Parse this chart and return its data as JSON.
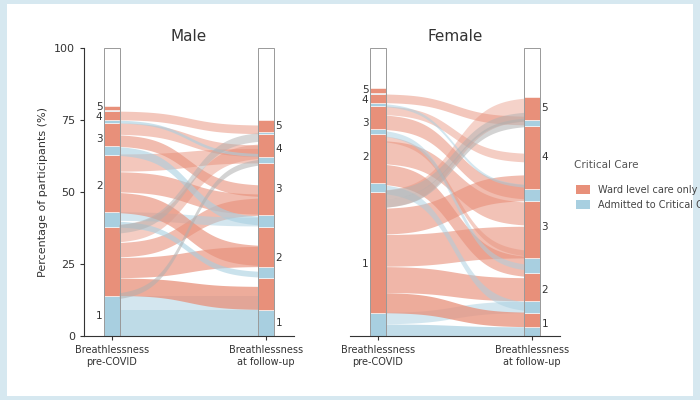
{
  "background_color": "#d6e8f0",
  "panel_bg": "#ffffff",
  "ward_color": "#e8907a",
  "critical_color": "#a8cfe0",
  "gray_color": "#b0b0b0",
  "title_male": "Male",
  "title_female": "Female",
  "ylabel": "Percentage of participants (%)",
  "xlabel_pre": "Breathlessness\npre-COVID",
  "xlabel_post": "Breathlessness\nat follow-up",
  "legend_title": "Critical Care",
  "legend_ward": "Ward level care only",
  "legend_critical": "Admitted to Critical Care",
  "male_pre_segs": [
    [
      0,
      14,
      "critical"
    ],
    [
      14,
      24,
      "ward"
    ],
    [
      38,
      5,
      "critical"
    ],
    [
      43,
      20,
      "ward"
    ],
    [
      63,
      3,
      "critical"
    ],
    [
      66,
      8,
      "ward"
    ],
    [
      74,
      1,
      "critical"
    ],
    [
      75,
      3,
      "ward"
    ],
    [
      78,
      0.5,
      "critical"
    ],
    [
      78.5,
      1.5,
      "ward"
    ]
  ],
  "male_pre_labels": [
    [
      7,
      "1"
    ],
    [
      52,
      "2"
    ],
    [
      68.5,
      "3"
    ],
    [
      76,
      "4"
    ],
    [
      79.5,
      "5"
    ]
  ],
  "male_post_segs": [
    [
      0,
      9,
      "critical"
    ],
    [
      9,
      11,
      "ward"
    ],
    [
      20,
      4,
      "critical"
    ],
    [
      24,
      14,
      "ward"
    ],
    [
      38,
      4,
      "critical"
    ],
    [
      42,
      18,
      "ward"
    ],
    [
      60,
      2,
      "critical"
    ],
    [
      62,
      8,
      "ward"
    ],
    [
      70,
      1,
      "critical"
    ],
    [
      71,
      4,
      "ward"
    ]
  ],
  "male_post_labels": [
    [
      4.5,
      "1"
    ],
    [
      27,
      "2"
    ],
    [
      51,
      "3"
    ],
    [
      65,
      "4"
    ],
    [
      73,
      "5"
    ]
  ],
  "male_transitions": [
    [
      0,
      9,
      0,
      9,
      "critical",
      0.75
    ],
    [
      9,
      14,
      9,
      14,
      "critical",
      0.5
    ],
    [
      14,
      20,
      9,
      17,
      "ward",
      0.75
    ],
    [
      20,
      27,
      24,
      31,
      "ward",
      0.65
    ],
    [
      27,
      32,
      42,
      48,
      "ward",
      0.6
    ],
    [
      32,
      38,
      62,
      67,
      "ward",
      0.45
    ],
    [
      38,
      40,
      20,
      22,
      "critical",
      0.6
    ],
    [
      40,
      43,
      38,
      41,
      "critical",
      0.5
    ],
    [
      43,
      50,
      24,
      31,
      "ward",
      0.65
    ],
    [
      50,
      57,
      42,
      49,
      "ward",
      0.6
    ],
    [
      57,
      63,
      60,
      65,
      "ward",
      0.5
    ],
    [
      63,
      66,
      38,
      41,
      "critical",
      0.6
    ],
    [
      66,
      70,
      48,
      52,
      "ward",
      0.6
    ],
    [
      70,
      74,
      62,
      66,
      "ward",
      0.5
    ],
    [
      74,
      75,
      62,
      63,
      "critical",
      0.6
    ],
    [
      75,
      78,
      70,
      73,
      "ward",
      0.5
    ],
    [
      12,
      14,
      60,
      62,
      "gray",
      0.55
    ],
    [
      35,
      38,
      68,
      71,
      "gray",
      0.5
    ]
  ],
  "female_pre_segs": [
    [
      0,
      8,
      "critical"
    ],
    [
      8,
      42,
      "ward"
    ],
    [
      50,
      3,
      "critical"
    ],
    [
      53,
      17,
      "ward"
    ],
    [
      70,
      2,
      "critical"
    ],
    [
      72,
      8,
      "ward"
    ],
    [
      80,
      1,
      "critical"
    ],
    [
      81,
      3,
      "ward"
    ],
    [
      84,
      0.5,
      "critical"
    ],
    [
      84.5,
      1.5,
      "ward"
    ]
  ],
  "female_pre_labels": [
    [
      25,
      "1"
    ],
    [
      62,
      "2"
    ],
    [
      74,
      "3"
    ],
    [
      82,
      "4"
    ],
    [
      85.5,
      "5"
    ]
  ],
  "female_post_segs": [
    [
      0,
      3,
      "critical"
    ],
    [
      3,
      5,
      "ward"
    ],
    [
      8,
      4,
      "critical"
    ],
    [
      12,
      10,
      "ward"
    ],
    [
      22,
      5,
      "critical"
    ],
    [
      27,
      20,
      "ward"
    ],
    [
      47,
      4,
      "critical"
    ],
    [
      51,
      22,
      "ward"
    ],
    [
      73,
      2,
      "critical"
    ],
    [
      75,
      8,
      "ward"
    ]
  ],
  "female_post_labels": [
    [
      4,
      "1"
    ],
    [
      16,
      "2"
    ],
    [
      38,
      "3"
    ],
    [
      62,
      "4"
    ],
    [
      79,
      "5"
    ]
  ],
  "female_transitions": [
    [
      0,
      4,
      0,
      3,
      "critical",
      0.7
    ],
    [
      4,
      8,
      8,
      12,
      "critical",
      0.5
    ],
    [
      8,
      15,
      3,
      8,
      "ward",
      0.75
    ],
    [
      15,
      24,
      12,
      20,
      "ward",
      0.65
    ],
    [
      24,
      35,
      27,
      38,
      "ward",
      0.6
    ],
    [
      35,
      44,
      47,
      56,
      "ward",
      0.6
    ],
    [
      44,
      50,
      75,
      83,
      "ward",
      0.4
    ],
    [
      50,
      53,
      8,
      11,
      "critical",
      0.5
    ],
    [
      53,
      60,
      20,
      27,
      "ward",
      0.6
    ],
    [
      60,
      68,
      38,
      46,
      "ward",
      0.55
    ],
    [
      68,
      70,
      27,
      29,
      "ward",
      0.45
    ],
    [
      70,
      72,
      22,
      24,
      "critical",
      0.5
    ],
    [
      72,
      77,
      47,
      52,
      "ward",
      0.55
    ],
    [
      77,
      80,
      60,
      63,
      "ward",
      0.45
    ],
    [
      80,
      81,
      51,
      52,
      "critical",
      0.5
    ],
    [
      81,
      84,
      73,
      76,
      "ward",
      0.5
    ],
    [
      44,
      47,
      73,
      76,
      "gray",
      0.55
    ],
    [
      47,
      50,
      75,
      78,
      "gray",
      0.5
    ]
  ]
}
